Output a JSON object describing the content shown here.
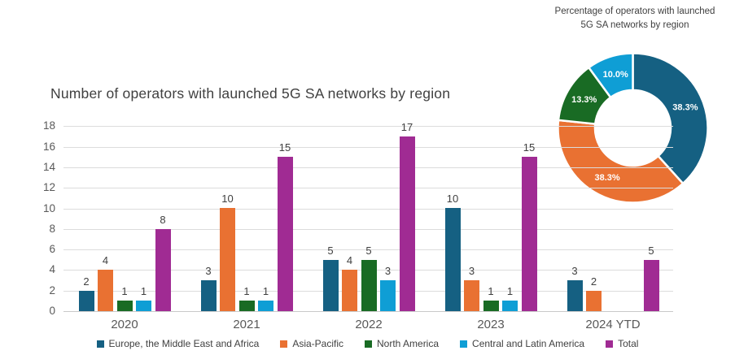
{
  "colors": {
    "europe_mea": "#156082",
    "asia_pacific": "#E97132",
    "north_america": "#196B24",
    "central_latin_america": "#0F9ED5",
    "total": "#A02B93",
    "title_text": "#404040",
    "axis_text": "#595959",
    "gridline": "#DCDCDC",
    "donut_label_text": "#FFFFFF"
  },
  "chart_data": [
    {
      "type": "bar",
      "title": "Number of operators with launched 5G SA networks by region",
      "categories": [
        "2020",
        "2021",
        "2022",
        "2023",
        "2024 YTD"
      ],
      "series": [
        {
          "name": "Europe, the Middle East and Africa",
          "color": "#156082",
          "values": [
            2,
            3,
            5,
            10,
            3
          ]
        },
        {
          "name": "Asia-Pacific",
          "color": "#E97132",
          "values": [
            4,
            10,
            4,
            3,
            2
          ]
        },
        {
          "name": "North America",
          "color": "#196B24",
          "values": [
            1,
            1,
            5,
            1,
            null
          ]
        },
        {
          "name": "Central and Latin America",
          "color": "#0F9ED5",
          "values": [
            1,
            1,
            3,
            1,
            null
          ]
        },
        {
          "name": "Total",
          "color": "#A02B93",
          "values": [
            8,
            15,
            17,
            15,
            5
          ]
        }
      ],
      "xlabel": "",
      "ylabel": "",
      "ylim": [
        0,
        18
      ],
      "ytick_step": 2,
      "grid": true,
      "data_labels": true,
      "legend_position": "bottom"
    },
    {
      "type": "pie",
      "donut": true,
      "title": "Percentage of operators with launched 5G SA networks by region",
      "title_lines": [
        "Percentage of operators with launched",
        "5G SA networks by region"
      ],
      "start_angle_deg": 0,
      "direction": "clockwise",
      "slices": [
        {
          "name": "Europe, the Middle East and Africa",
          "color": "#156082",
          "value": 38.3,
          "label": "38.3%"
        },
        {
          "name": "Asia-Pacific",
          "color": "#E97132",
          "value": 38.3,
          "label": "38.3%"
        },
        {
          "name": "North America",
          "color": "#196B24",
          "value": 13.3,
          "label": "13.3%"
        },
        {
          "name": "Central and Latin America",
          "color": "#0F9ED5",
          "value": 10.0,
          "label": "10.0%"
        }
      ]
    }
  ]
}
